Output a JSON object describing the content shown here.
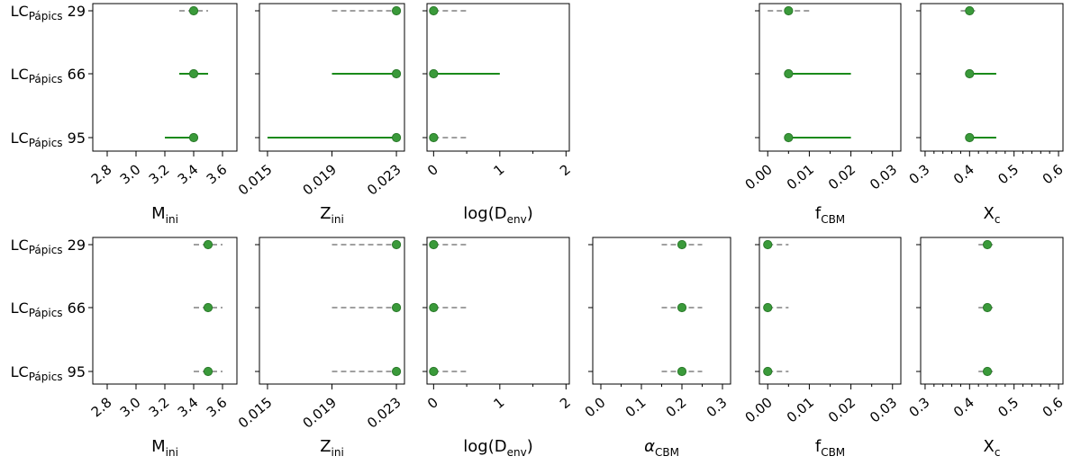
{
  "rows": [
    {
      "prefix": "LC",
      "subscript": "Pápics",
      "number": "29"
    },
    {
      "prefix": "LC",
      "subscript": "Pápics",
      "number": "66"
    },
    {
      "prefix": "LC",
      "subscript": "Pápics",
      "number": "95"
    }
  ],
  "colors": {
    "point": "#3a9a3a",
    "point_edge": "#2a7a2a",
    "solid": "#1a8a1a",
    "dashed": "#a0a0a0"
  },
  "chart_data": [
    {
      "type": "scatter",
      "panel": "top-M",
      "xlabel": {
        "main": "M",
        "sub": "ini"
      },
      "xlim": [
        2.7,
        3.7
      ],
      "ticks": [
        2.8,
        3.0,
        3.2,
        3.4,
        3.6
      ],
      "tick_labels": [
        "2.8",
        "3.0",
        "3.2",
        "3.4",
        "3.6"
      ],
      "points": [
        {
          "row": "29",
          "x": 3.4,
          "lo": 3.3,
          "hi": 3.5,
          "style": "dashed"
        },
        {
          "row": "66",
          "x": 3.4,
          "lo": 3.3,
          "hi": 3.5,
          "style": "solid"
        },
        {
          "row": "95",
          "x": 3.4,
          "lo": 3.2,
          "hi": 3.4,
          "style": "solid"
        }
      ]
    },
    {
      "type": "scatter",
      "panel": "top-Z",
      "xlabel": {
        "main": "Z",
        "sub": "ini"
      },
      "xlim": [
        0.0145,
        0.0235
      ],
      "ticks": [
        0.015,
        0.019,
        0.023
      ],
      "tick_labels": [
        "0.015",
        "0.019",
        "0.023"
      ],
      "points": [
        {
          "row": "29",
          "x": 0.023,
          "lo": 0.019,
          "hi": 0.023,
          "style": "dashed"
        },
        {
          "row": "66",
          "x": 0.023,
          "lo": 0.019,
          "hi": 0.023,
          "style": "solid"
        },
        {
          "row": "95",
          "x": 0.023,
          "lo": 0.015,
          "hi": 0.023,
          "style": "solid"
        }
      ]
    },
    {
      "type": "scatter",
      "panel": "top-D",
      "xlabel": {
        "main": "log(D",
        "sub": "env",
        "close": ")"
      },
      "xlim": [
        -0.1,
        2.05
      ],
      "ticks": [
        0,
        1,
        2
      ],
      "tick_labels": [
        "0",
        "1",
        "2"
      ],
      "minor": [
        0.5,
        1.5
      ],
      "points": [
        {
          "row": "29",
          "x": 0,
          "lo": 0,
          "hi": 0.5,
          "style": "dashed"
        },
        {
          "row": "66",
          "x": 0,
          "lo": 0,
          "hi": 1,
          "style": "solid"
        },
        {
          "row": "95",
          "x": 0,
          "lo": 0,
          "hi": 0.5,
          "style": "dashed"
        }
      ]
    },
    {
      "type": "scatter",
      "panel": "top-f",
      "xlabel": {
        "main": "f",
        "sub": "CBM"
      },
      "xlim": [
        -0.002,
        0.032
      ],
      "ticks": [
        0.0,
        0.01,
        0.02,
        0.03
      ],
      "tick_labels": [
        "0.00",
        "0.01",
        "0.02",
        "0.03"
      ],
      "minor": [
        0.005,
        0.015,
        0.025
      ],
      "points": [
        {
          "row": "29",
          "x": 0.005,
          "lo": 0.0,
          "hi": 0.01,
          "style": "dashed"
        },
        {
          "row": "66",
          "x": 0.005,
          "lo": 0.005,
          "hi": 0.02,
          "style": "solid"
        },
        {
          "row": "95",
          "x": 0.005,
          "lo": 0.005,
          "hi": 0.02,
          "style": "solid"
        }
      ]
    },
    {
      "type": "scatter",
      "panel": "top-X",
      "xlabel": {
        "main": "X",
        "sub": "c"
      },
      "xlim": [
        0.29,
        0.61
      ],
      "ticks": [
        0.3,
        0.4,
        0.5,
        0.6
      ],
      "tick_labels": [
        "0.3",
        "0.4",
        "0.5",
        "0.6"
      ],
      "minor": [
        0.32,
        0.34,
        0.36,
        0.38,
        0.42,
        0.44,
        0.46,
        0.48,
        0.52,
        0.54,
        0.56,
        0.58
      ],
      "points": [
        {
          "row": "29",
          "x": 0.4,
          "lo": 0.38,
          "hi": 0.42,
          "style": "dashed"
        },
        {
          "row": "66",
          "x": 0.4,
          "lo": 0.4,
          "hi": 0.46,
          "style": "solid"
        },
        {
          "row": "95",
          "x": 0.4,
          "lo": 0.4,
          "hi": 0.46,
          "style": "solid"
        }
      ]
    },
    {
      "type": "scatter",
      "panel": "bottom-M",
      "xlabel": {
        "main": "M",
        "sub": "ini"
      },
      "xlim": [
        2.7,
        3.7
      ],
      "ticks": [
        2.8,
        3.0,
        3.2,
        3.4,
        3.6
      ],
      "tick_labels": [
        "2.8",
        "3.0",
        "3.2",
        "3.4",
        "3.6"
      ],
      "points": [
        {
          "row": "29",
          "x": 3.5,
          "lo": 3.4,
          "hi": 3.6,
          "style": "dashed"
        },
        {
          "row": "66",
          "x": 3.5,
          "lo": 3.4,
          "hi": 3.6,
          "style": "dashed"
        },
        {
          "row": "95",
          "x": 3.5,
          "lo": 3.4,
          "hi": 3.6,
          "style": "dashed"
        }
      ]
    },
    {
      "type": "scatter",
      "panel": "bottom-Z",
      "xlabel": {
        "main": "Z",
        "sub": "ini"
      },
      "xlim": [
        0.0145,
        0.0235
      ],
      "ticks": [
        0.015,
        0.019,
        0.023
      ],
      "tick_labels": [
        "0.015",
        "0.019",
        "0.023"
      ],
      "points": [
        {
          "row": "29",
          "x": 0.023,
          "lo": 0.019,
          "hi": 0.023,
          "style": "dashed"
        },
        {
          "row": "66",
          "x": 0.023,
          "lo": 0.019,
          "hi": 0.023,
          "style": "dashed"
        },
        {
          "row": "95",
          "x": 0.023,
          "lo": 0.019,
          "hi": 0.023,
          "style": "dashed"
        }
      ]
    },
    {
      "type": "scatter",
      "panel": "bottom-D",
      "xlabel": {
        "main": "log(D",
        "sub": "env",
        "close": ")"
      },
      "xlim": [
        -0.1,
        2.05
      ],
      "ticks": [
        0,
        1,
        2
      ],
      "tick_labels": [
        "0",
        "1",
        "2"
      ],
      "minor": [
        0.5,
        1.5
      ],
      "points": [
        {
          "row": "29",
          "x": 0,
          "lo": 0,
          "hi": 0.5,
          "style": "dashed"
        },
        {
          "row": "66",
          "x": 0,
          "lo": 0,
          "hi": 0.5,
          "style": "dashed"
        },
        {
          "row": "95",
          "x": 0,
          "lo": 0,
          "hi": 0.5,
          "style": "dashed"
        }
      ]
    },
    {
      "type": "scatter",
      "panel": "bottom-a",
      "xlabel": {
        "main": "α",
        "sub": "CBM",
        "italic": true
      },
      "xlim": [
        -0.02,
        0.32
      ],
      "ticks": [
        0.0,
        0.1,
        0.2,
        0.3
      ],
      "tick_labels": [
        "0.0",
        "0.1",
        "0.2",
        "0.3"
      ],
      "minor": [
        0.05,
        0.15,
        0.25
      ],
      "points": [
        {
          "row": "29",
          "x": 0.2,
          "lo": 0.15,
          "hi": 0.25,
          "style": "dashed"
        },
        {
          "row": "66",
          "x": 0.2,
          "lo": 0.15,
          "hi": 0.25,
          "style": "dashed"
        },
        {
          "row": "95",
          "x": 0.2,
          "lo": 0.15,
          "hi": 0.25,
          "style": "dashed"
        }
      ]
    },
    {
      "type": "scatter",
      "panel": "bottom-f",
      "xlabel": {
        "main": "f",
        "sub": "CBM"
      },
      "xlim": [
        -0.002,
        0.032
      ],
      "ticks": [
        0.0,
        0.01,
        0.02,
        0.03
      ],
      "tick_labels": [
        "0.00",
        "0.01",
        "0.02",
        "0.03"
      ],
      "minor": [
        0.005,
        0.015,
        0.025
      ],
      "points": [
        {
          "row": "29",
          "x": 0.0,
          "lo": 0.0,
          "hi": 0.005,
          "style": "dashed"
        },
        {
          "row": "66",
          "x": 0.0,
          "lo": 0.0,
          "hi": 0.005,
          "style": "dashed"
        },
        {
          "row": "95",
          "x": 0.0,
          "lo": 0.0,
          "hi": 0.005,
          "style": "dashed"
        }
      ]
    },
    {
      "type": "scatter",
      "panel": "bottom-X",
      "xlabel": {
        "main": "X",
        "sub": "c"
      },
      "xlim": [
        0.29,
        0.61
      ],
      "ticks": [
        0.3,
        0.4,
        0.5,
        0.6
      ],
      "tick_labels": [
        "0.3",
        "0.4",
        "0.5",
        "0.6"
      ],
      "minor": [
        0.32,
        0.34,
        0.36,
        0.38,
        0.42,
        0.44,
        0.46,
        0.48,
        0.52,
        0.54,
        0.56,
        0.58
      ],
      "points": [
        {
          "row": "29",
          "x": 0.44,
          "lo": 0.42,
          "hi": 0.46,
          "style": "dashed"
        },
        {
          "row": "66",
          "x": 0.44,
          "lo": 0.42,
          "hi": 0.46,
          "style": "dashed"
        },
        {
          "row": "95",
          "x": 0.44,
          "lo": 0.42,
          "hi": 0.46,
          "style": "dashed"
        }
      ]
    }
  ]
}
